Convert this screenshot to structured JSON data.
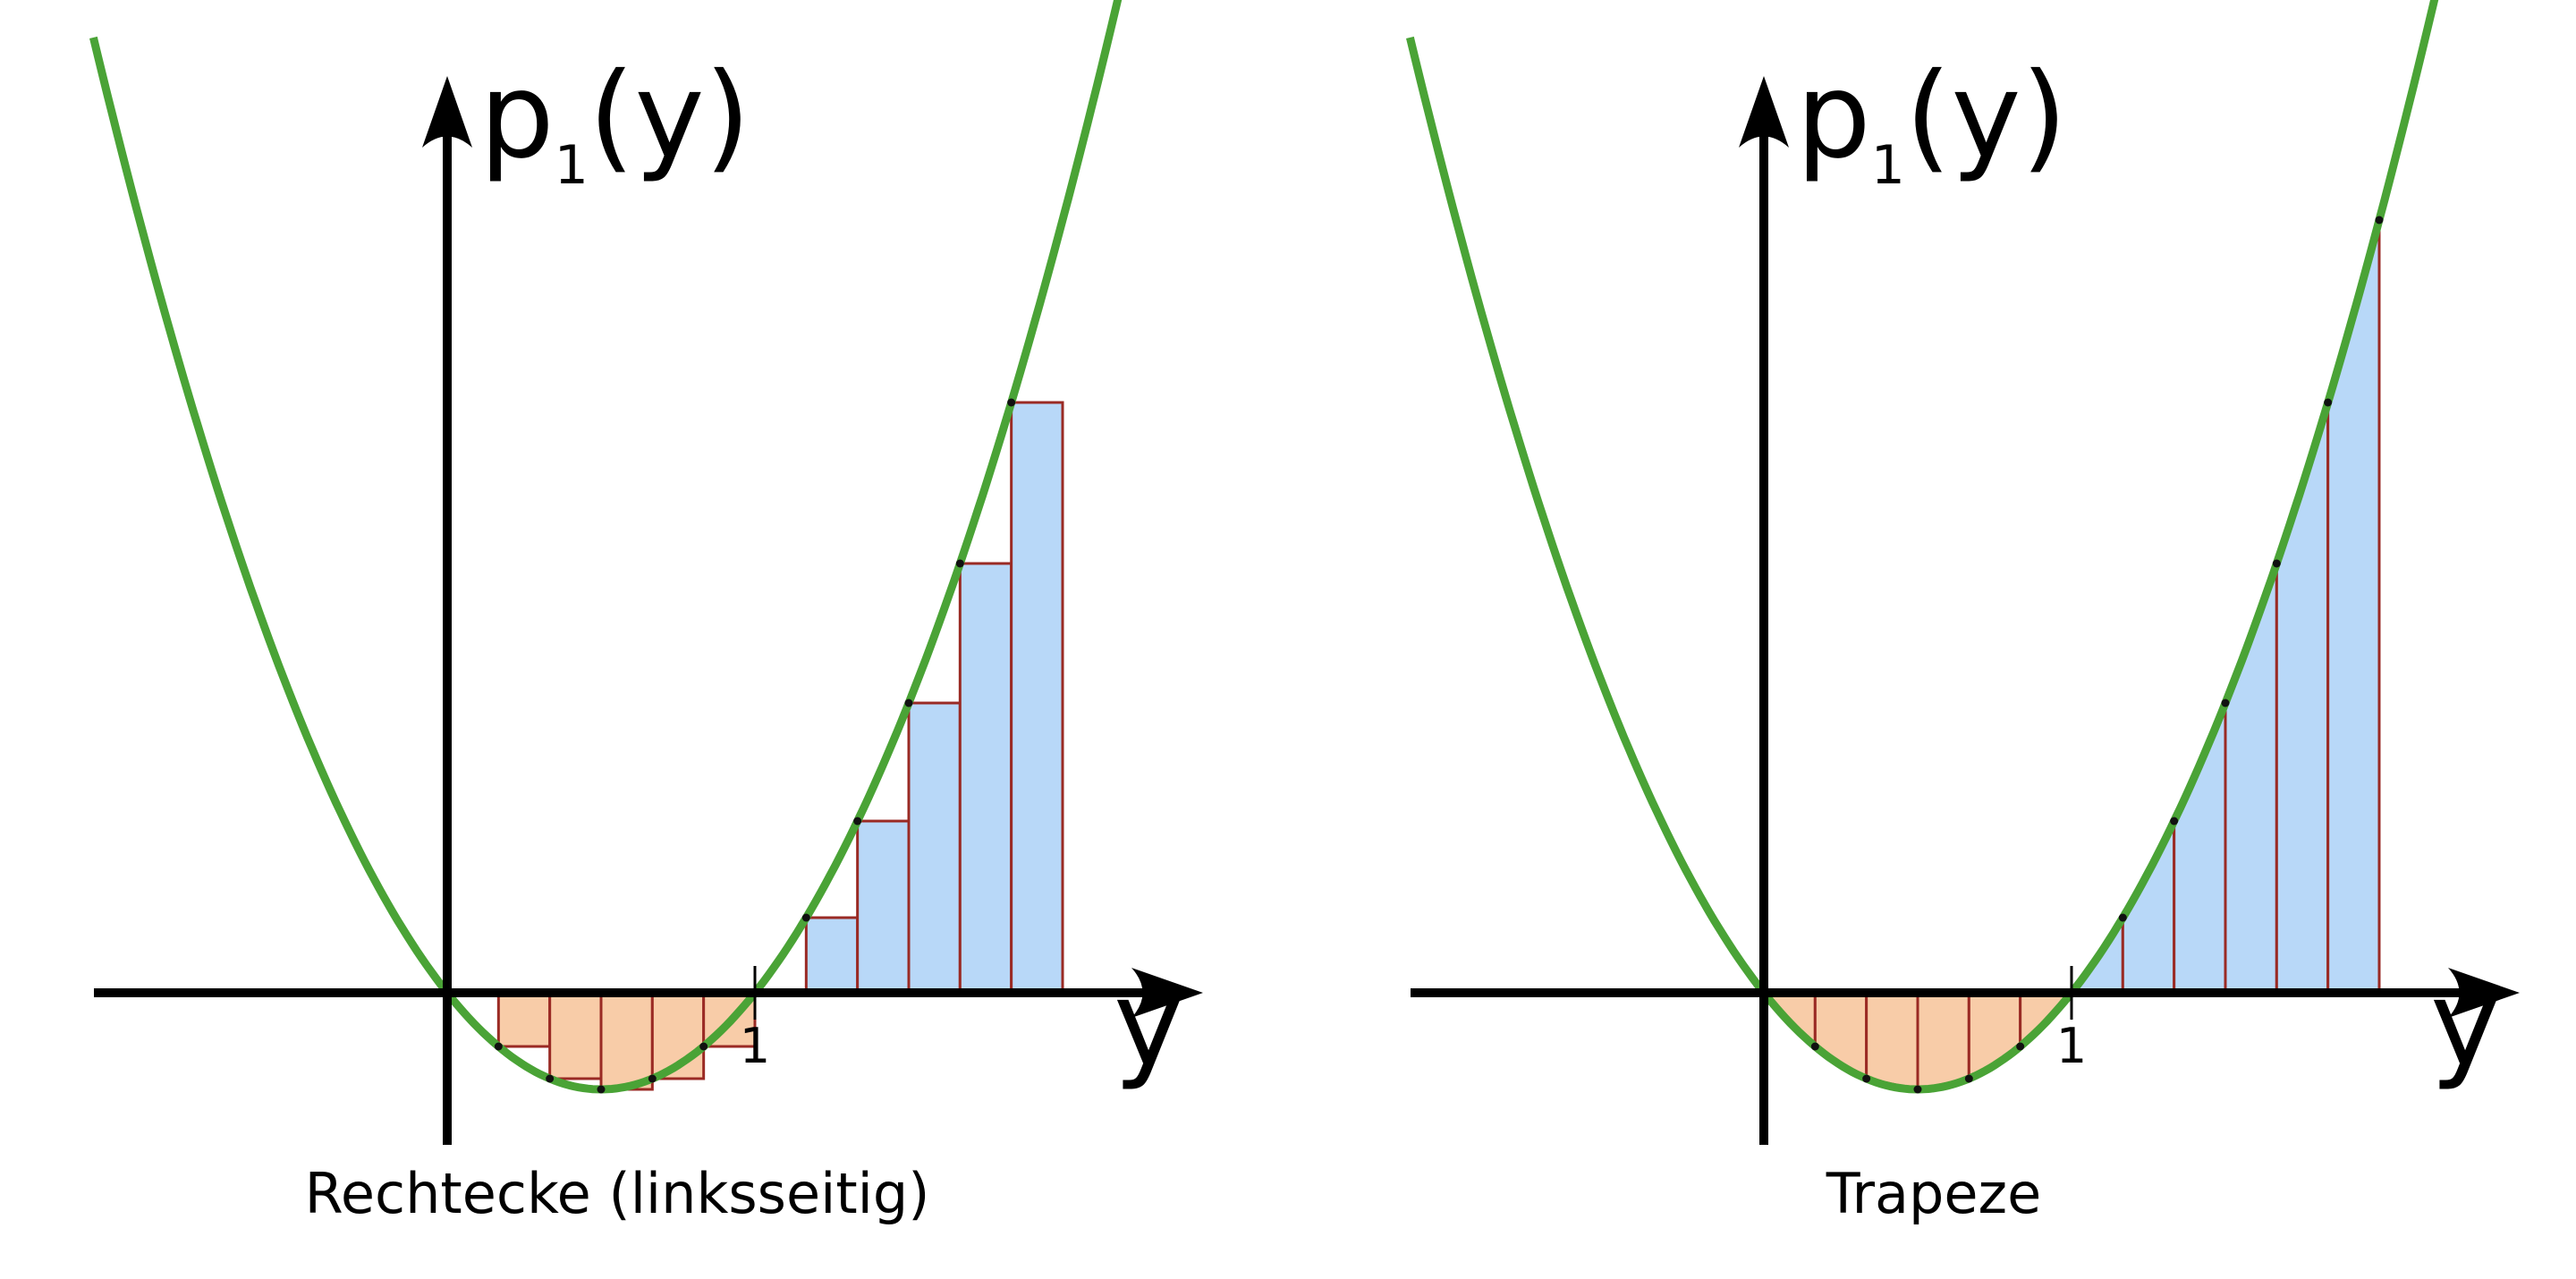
{
  "colors": {
    "curve": "#4aa336",
    "axis": "#000000",
    "positive_fill": "#b8d8f8",
    "negative_fill": "#f8cca8",
    "bar_stroke": "#9a2a24",
    "point": "#111111"
  },
  "panels": [
    {
      "method": "left-rectangles",
      "caption": "Rechtecke (linksseitig)",
      "x_axis_label": "y",
      "y_axis_label": {
        "base": "p",
        "subscript": "1",
        "argument": "(y)"
      },
      "tick_label": "1"
    },
    {
      "method": "trapezoids",
      "caption": "Trapeze",
      "x_axis_label": "y",
      "y_axis_label": {
        "base": "p",
        "subscript": "1",
        "argument": "(y)"
      },
      "tick_label": "1"
    }
  ],
  "chart_data": {
    "type": "line",
    "function": "p1(y) = y^2 - y",
    "x_range": [
      -1.15,
      2.25
    ],
    "partition_step": 0.1667,
    "partition_range": [
      0,
      2
    ]
  }
}
